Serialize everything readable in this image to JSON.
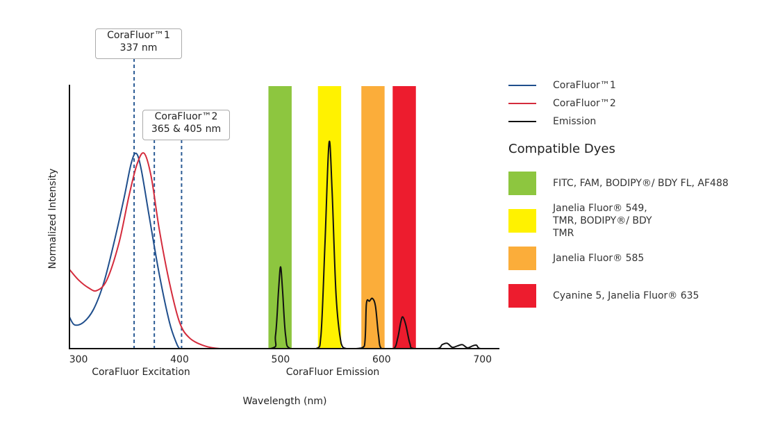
{
  "chart_data": {
    "type": "line",
    "xlabel": "Wavelength (nm)",
    "ylabel": "Normalized Intensity",
    "xlim": [
      291,
      716
    ],
    "ylim": [
      0,
      1
    ],
    "x_ticks": [
      300,
      400,
      500,
      600,
      700
    ],
    "x_section_labels": [
      "CoraFluor Excitation",
      "CoraFluor Emission"
    ],
    "grid": false,
    "legend_placement": "right",
    "series": [
      {
        "name": "CoraFluor™1",
        "color": "#1f4e8c",
        "points": [
          [
            291,
            0.12
          ],
          [
            296,
            0.09
          ],
          [
            305,
            0.1
          ],
          [
            315,
            0.15
          ],
          [
            325,
            0.25
          ],
          [
            335,
            0.4
          ],
          [
            345,
            0.57
          ],
          [
            352,
            0.7
          ],
          [
            357,
            0.74
          ],
          [
            362,
            0.68
          ],
          [
            370,
            0.5
          ],
          [
            380,
            0.28
          ],
          [
            390,
            0.1
          ],
          [
            397,
            0.02
          ],
          [
            400,
            0
          ]
        ]
      },
      {
        "name": "CoraFluor™2",
        "color": "#d42b3c",
        "points": [
          [
            291,
            0.3
          ],
          [
            300,
            0.26
          ],
          [
            310,
            0.23
          ],
          [
            318,
            0.22
          ],
          [
            328,
            0.26
          ],
          [
            340,
            0.4
          ],
          [
            350,
            0.58
          ],
          [
            358,
            0.7
          ],
          [
            365,
            0.74
          ],
          [
            372,
            0.65
          ],
          [
            380,
            0.45
          ],
          [
            390,
            0.25
          ],
          [
            400,
            0.1
          ],
          [
            410,
            0.04
          ],
          [
            425,
            0.01
          ],
          [
            440,
            0
          ],
          [
            460,
            0
          ]
        ]
      },
      {
        "name": "Emission",
        "color": "#111111",
        "points": [
          [
            440,
            0
          ],
          [
            490,
            0
          ],
          [
            495,
            0.05
          ],
          [
            498,
            0.22
          ],
          [
            500,
            0.31
          ],
          [
            502,
            0.22
          ],
          [
            505,
            0.05
          ],
          [
            510,
            0
          ],
          [
            535,
            0
          ],
          [
            540,
            0.05
          ],
          [
            544,
            0.4
          ],
          [
            548,
            0.78
          ],
          [
            551,
            0.6
          ],
          [
            555,
            0.2
          ],
          [
            560,
            0.02
          ],
          [
            565,
            0
          ],
          [
            575,
            0
          ],
          [
            583,
            0.01
          ],
          [
            585,
            0.17
          ],
          [
            588,
            0.18
          ],
          [
            591,
            0.19
          ],
          [
            594,
            0.16
          ],
          [
            597,
            0.05
          ],
          [
            600,
            0
          ],
          [
            612,
            0
          ],
          [
            616,
            0.04
          ],
          [
            619,
            0.1
          ],
          [
            621,
            0.12
          ],
          [
            624,
            0.09
          ],
          [
            628,
            0.02
          ],
          [
            632,
            0
          ],
          [
            655,
            0
          ],
          [
            660,
            0.015
          ],
          [
            665,
            0.02
          ],
          [
            670,
            0.005
          ],
          [
            675,
            0.01
          ],
          [
            680,
            0.015
          ],
          [
            685,
            0.003
          ],
          [
            690,
            0.01
          ],
          [
            694,
            0.013
          ],
          [
            698,
            0
          ],
          [
            716,
            0
          ]
        ]
      }
    ],
    "excitation_lines": [
      355,
      375,
      402
    ],
    "callouts": [
      {
        "line1": "CoraFluor™1",
        "line2": "337 nm"
      },
      {
        "line1": "CoraFluor™2",
        "line2": "365 & 405 nm"
      }
    ],
    "dye_bands": [
      {
        "range": [
          488,
          511
        ],
        "color": "#8dc63f",
        "label": "FITC, FAM, BODIPY®/ BDY FL, AF488"
      },
      {
        "range": [
          537,
          560
        ],
        "color": "#fff200",
        "label": "Janelia Fluor® 549, TMR, BODIPY®/ BDY TMR"
      },
      {
        "range": [
          580,
          603
        ],
        "color": "#fbad3a",
        "label": "Janelia Fluor® 585"
      },
      {
        "range": [
          611,
          634
        ],
        "color": "#ed1c2e",
        "label": "Cyanine 5, Janelia Fluor® 635"
      }
    ],
    "dyes_title": "Compatible Dyes"
  }
}
